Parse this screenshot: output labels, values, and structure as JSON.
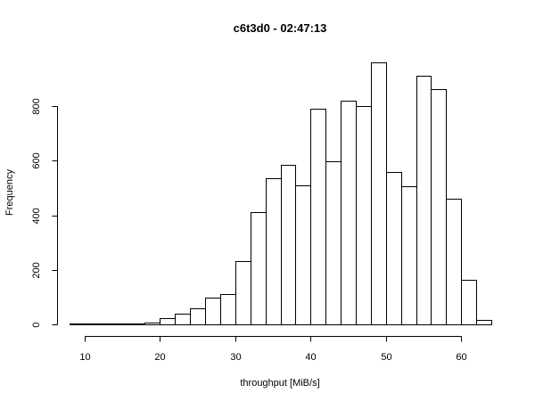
{
  "chart_data": {
    "type": "bar",
    "title": "c6t3d0 - 02:47:13",
    "xlabel": "throughput [MiB/s]",
    "ylabel": "Frequency",
    "bin_width": 2,
    "bin_starts": [
      8,
      10,
      12,
      14,
      16,
      18,
      20,
      22,
      24,
      26,
      28,
      30,
      32,
      34,
      36,
      38,
      40,
      42,
      44,
      46,
      48,
      50,
      52,
      54,
      56,
      58,
      60,
      62
    ],
    "values": [
      1,
      1,
      1,
      1,
      3,
      5,
      22,
      40,
      60,
      98,
      110,
      232,
      410,
      535,
      585,
      510,
      790,
      598,
      820,
      800,
      960,
      560,
      505,
      912,
      862,
      460,
      162,
      15
    ],
    "x_ticks": [
      10,
      20,
      30,
      40,
      50,
      60
    ],
    "y_ticks": [
      0,
      200,
      400,
      600,
      800
    ],
    "xlim": [
      8,
      64
    ],
    "ylim": [
      0,
      960
    ],
    "grid": false,
    "legend": "none"
  }
}
